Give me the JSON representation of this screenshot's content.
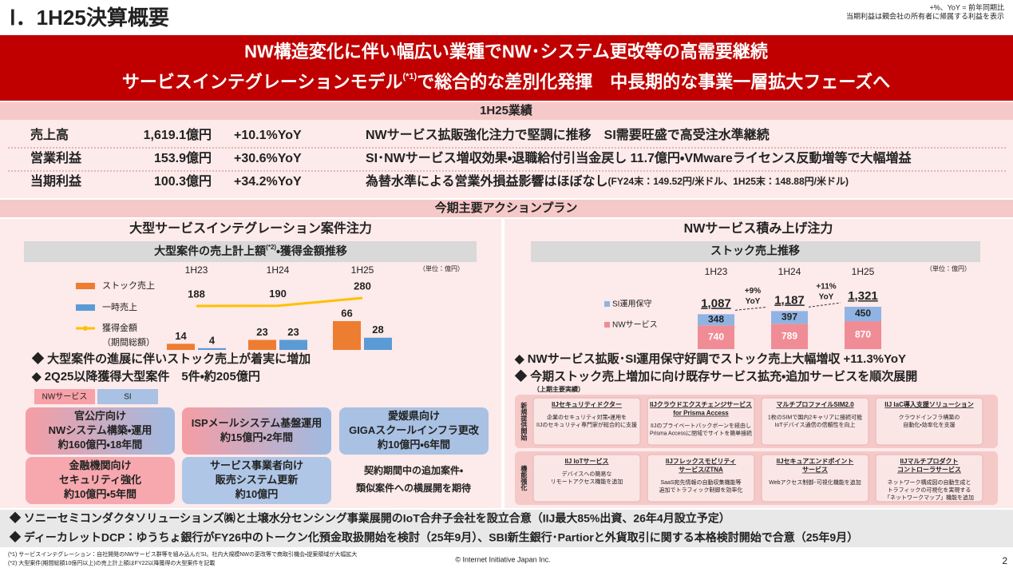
{
  "header": {
    "title": "Ⅰ．1H25決算概要",
    "notes": [
      "+%、YoY = 前年同期比",
      "当期利益は親会社の所有者に帰属する利益を表示"
    ]
  },
  "banner": {
    "line1": "NW構造変化に伴い幅広い業種でNW･システム更改等の高需要継続",
    "line2": [
      "サービスインテグレーションモデル",
      "(*1)",
      "で総合的な差別化発揮　中長期的な事業一層拡大フェーズへ"
    ]
  },
  "results": {
    "title": "1H25業績",
    "rows": [
      [
        "売上高",
        "1,619.1億円",
        "+10.1%YoY",
        "NWサービス拡販強化注力で堅調に推移　SI需要旺盛で高受注水準継続"
      ],
      [
        "営業利益",
        "153.9億円",
        "+30.6%YoY",
        "SI･NWサービス増収効果・退職給付引当金戻し 11.7億円・VMwareライセンス反動増等で大幅増益"
      ],
      [
        "当期利益",
        "100.3億円",
        "+34.2%YoY",
        "為替水準による営業外損益影響はほぼなし",
        "(FY24末：149.52円/米ドル、1H25末：148.88円/米ドル)"
      ]
    ]
  },
  "action_plan": {
    "title": "今期主要アクションプラン"
  },
  "left": {
    "title": "大型サービスインテグレーション案件注力",
    "bullets": [
      "◆ 大型案件の進展に伴いストック売上が着実に増加",
      "◆ 2Q25以降獲得大型案件　5件・約205億円"
    ],
    "legend": [
      {
        "label": "NWサービス",
        "color": "#f7a1a8"
      },
      {
        "label": "SI",
        "color": "#a9c1e3"
      }
    ],
    "projects": [
      {
        "lines": [
          "官公庁向け",
          "NWシステム構築・運用",
          "約160億円・18年間"
        ],
        "color": [
          "#f59da4",
          "#9fbbe2"
        ]
      },
      {
        "lines": [
          "ISPメールシステム基盤運用",
          "約15億円・2年間"
        ],
        "color": [
          "#f59da4",
          "#9fbbe2"
        ]
      },
      {
        "lines": [
          "愛媛県向け",
          "GIGAスクールインフラ更改",
          "約10億円・6年間"
        ],
        "color": [
          "#a9c1e3"
        ]
      },
      {
        "lines": [
          "金融機関向け",
          "セキュリティ強化",
          "約10億円・5年間"
        ],
        "color": [
          "#f7a8ae"
        ]
      },
      {
        "lines": [
          "サービス事業者向け",
          "販売システム更新",
          "約10億円"
        ],
        "color": [
          "#b0c6e6"
        ]
      }
    ],
    "note": [
      "契約期間中の追加案件・",
      "類似案件への横展開を期待"
    ]
  },
  "right": {
    "title": "NWサービス積み上げ注力",
    "bullets": [
      "◆ NWサービス拡販･SI運用保守好調でストック売上大幅増収 +11.3%YoY",
      "◆ 今期ストック売上増加に向け既存サービス拡充・追加サービスを順次展開"
    ],
    "subhead": "（上期主要実績）",
    "groups": [
      {
        "label": "新規提供開始",
        "cards": [
          {
            "title": [
              "IIJセキュリティドクター"
            ],
            "desc": [
              "企業のセキュリティ対策・運用を",
              "IIJのセキュリティ専門家が総合的に支援"
            ]
          },
          {
            "title": [
              "IIJクラウドエクスチェンジサービス",
              "for Prisma Access"
            ],
            "desc": [
              "IIJのプライベートバックボーンを経由し",
              "Prisma Accessに閉域でサイトを簡単接続"
            ]
          },
          {
            "title": [
              "マルチプロファイルSIM2.0"
            ],
            "desc": [
              "1枚のSIMで国内2キャリアに接続可能",
              "IoTデバイス通信の信頼性を向上"
            ]
          },
          {
            "title": [
              "IIJ IaC導入支援ソリューション"
            ],
            "desc": [
              "クラウドインフラ構築の",
              "自動化・効率化を支援"
            ]
          }
        ]
      },
      {
        "label": "機能強化",
        "cards": [
          {
            "title": [
              "IIJ IoTサービス"
            ],
            "desc": [
              "デバイスへの簡易な",
              "リモートアクセス機能を追加"
            ]
          },
          {
            "title": [
              "IIJフレックスモビリティ",
              "サービス/ZTNA"
            ],
            "desc": [
              "SaaS宛先情報の自動収集機能等",
              "追加でトラフィック制御を効率化"
            ]
          },
          {
            "title": [
              "IIJセキュアエンドポイント",
              "サービス"
            ],
            "desc": [
              "Webアクセス制御･可視化機能を追加"
            ]
          },
          {
            "title": [
              "IIJマルチプロダクト",
              "コントローラサービス"
            ],
            "desc": [
              "ネットワーク構成図の自動生成と",
              "トラフィックの可視化を実現する",
              "「ネットワークマップ」機能を追加"
            ]
          }
        ]
      }
    ]
  },
  "news": [
    "◆ ソニーセミコンダクタソリューションズ㈱と土壌水分センシング事業展開のIoT合弁子会社を設立合意（IIJ最大85%出資、26年4月設立予定）",
    "◆ ディーカレットDCP：ゆうちょ銀行がFY26中のトークン化預金取扱開始を検討（25年9月）、SBI新生銀行･Partiorと外貨取引に関する本格検討開始で合意（25年9月）"
  ],
  "footer": {
    "notes": [
      "(*1) サービスインテグレーション：自社開発のNWサービス群等を組み込んだSI。社内大規模NWの更改等で商取引機会・提案領域が大幅拡大",
      "(*2) 大型案件(期間総額10億円以上)の売上計上額はFY22以降獲得の大型案件を記載"
    ],
    "copyright": "© Internet Initiative Japan Inc.",
    "page": 2
  },
  "chart_data": [
    {
      "type": "bar",
      "title": [
        "大型案件の売上計上額",
        "(*2)",
        "・獲得金額推移"
      ],
      "unit": "（単位：億円）",
      "categories": [
        "1H23",
        "1H24",
        "1H25"
      ],
      "series": [
        {
          "name": "ストック売上",
          "color": "#ed7d31",
          "values": [
            14,
            23,
            66
          ]
        },
        {
          "name": "一時売上",
          "color": "#5b9bd5",
          "values": [
            4,
            23,
            28
          ]
        },
        {
          "name": "獲得金額",
          "type": "line",
          "axis": "y2",
          "color": "#ffc000",
          "values": [
            188,
            190,
            280
          ]
        }
      ],
      "legend_note": "（期間総額）"
    },
    {
      "type": "stacked_bar",
      "title": "ストック売上推移",
      "unit": "（単位：億円）",
      "categories": [
        "1H23",
        "1H24",
        "1H25"
      ],
      "series": [
        {
          "name": "NWサービス",
          "color": "#f08c96",
          "values": [
            740,
            789,
            870
          ]
        },
        {
          "name": "SI運用保守",
          "color": "#8fb4e3",
          "values": [
            348,
            397,
            450
          ]
        }
      ],
      "totals": [
        {
          "value": 1087,
          "label": "1,087"
        },
        {
          "value": 1187,
          "label": "1,187"
        },
        {
          "value": 1321,
          "label": "1,321"
        }
      ],
      "growth": [
        {
          "label": "+9%",
          "sub": "YoY"
        },
        {
          "label": "+11%",
          "sub": "YoY"
        }
      ]
    }
  ]
}
